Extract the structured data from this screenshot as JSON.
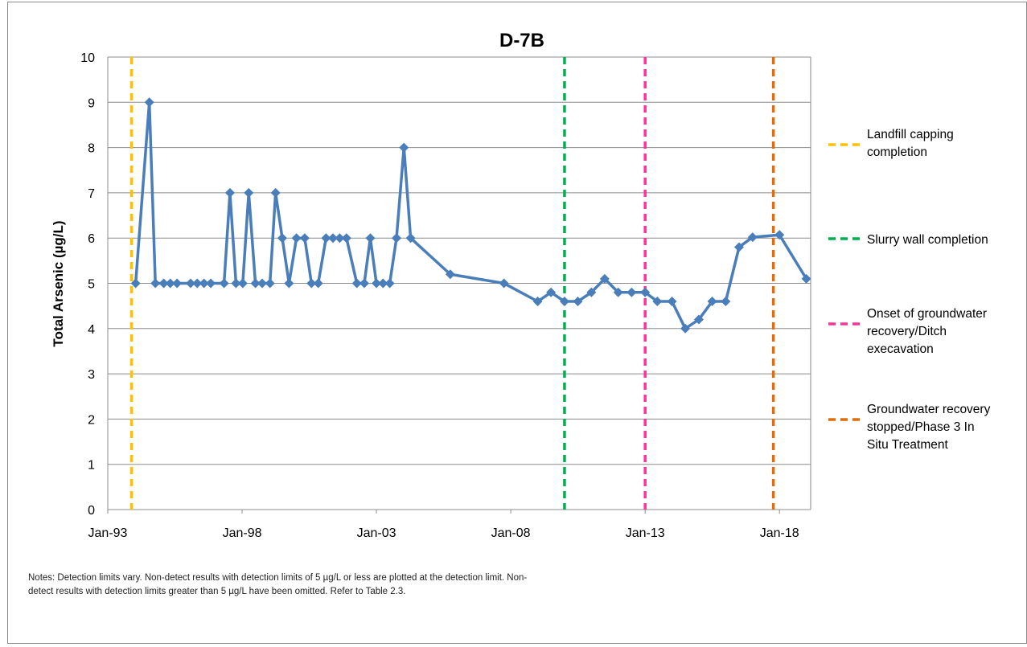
{
  "chart_data": {
    "type": "line",
    "title": "D-7B",
    "ylabel": "Total Arsenic (µg/L)",
    "xlabel": "",
    "ylim": [
      0,
      10
    ],
    "yticks": [
      "0",
      "1",
      "2",
      "3",
      "4",
      "5",
      "6",
      "7",
      "8",
      "9",
      "10"
    ],
    "xlim": [
      "1993-01-01",
      "2019-03-01"
    ],
    "xticks": [
      {
        "date": "1993-01-01",
        "label": "Jan-93"
      },
      {
        "date": "1998-01-01",
        "label": "Jan-98"
      },
      {
        "date": "2003-01-01",
        "label": "Jan-03"
      },
      {
        "date": "2008-01-01",
        "label": "Jan-08"
      },
      {
        "date": "2013-01-01",
        "label": "Jan-13"
      },
      {
        "date": "2018-01-01",
        "label": "Jan-18"
      }
    ],
    "grid": "horizontal",
    "series": [
      {
        "color": "#4a7ebb",
        "marker": "diamond",
        "points": [
          [
            "1994-01-15",
            5
          ],
          [
            "1994-07-20",
            9
          ],
          [
            "1994-10-10",
            5
          ],
          [
            "1995-02-01",
            5
          ],
          [
            "1995-05-01",
            5
          ],
          [
            "1995-08-01",
            5
          ],
          [
            "1996-02-01",
            5
          ],
          [
            "1996-05-01",
            5
          ],
          [
            "1996-08-01",
            5
          ],
          [
            "1996-11-01",
            5
          ],
          [
            "1997-05-01",
            5
          ],
          [
            "1997-07-20",
            7
          ],
          [
            "1997-10-10",
            5
          ],
          [
            "1998-01-10",
            5
          ],
          [
            "1998-04-01",
            7
          ],
          [
            "1998-07-01",
            5
          ],
          [
            "1998-10-01",
            5
          ],
          [
            "1999-01-15",
            5
          ],
          [
            "1999-04-01",
            7
          ],
          [
            "1999-07-01",
            6
          ],
          [
            "1999-10-01",
            5
          ],
          [
            "2000-01-10",
            6
          ],
          [
            "2000-05-01",
            6
          ],
          [
            "2000-08-01",
            5
          ],
          [
            "2000-11-01",
            5
          ],
          [
            "2001-02-15",
            6
          ],
          [
            "2001-05-20",
            6
          ],
          [
            "2001-08-20",
            6
          ],
          [
            "2001-11-20",
            6
          ],
          [
            "2002-04-10",
            5
          ],
          [
            "2002-07-20",
            5
          ],
          [
            "2002-10-10",
            6
          ],
          [
            "2003-01-01",
            5
          ],
          [
            "2003-04-01",
            5
          ],
          [
            "2003-07-01",
            5
          ],
          [
            "2003-10-01",
            6
          ],
          [
            "2004-01-10",
            8
          ],
          [
            "2004-04-10",
            6
          ],
          [
            "2005-10-01",
            5.2
          ],
          [
            "2007-10-01",
            5
          ],
          [
            "2009-01-01",
            4.6
          ],
          [
            "2009-07-01",
            4.8
          ],
          [
            "2010-01-01",
            4.6
          ],
          [
            "2010-07-01",
            4.6
          ],
          [
            "2011-01-01",
            4.8
          ],
          [
            "2011-07-01",
            5.1
          ],
          [
            "2012-01-01",
            4.8
          ],
          [
            "2012-07-01",
            4.8
          ],
          [
            "2013-01-01",
            4.8
          ],
          [
            "2013-06-15",
            4.6
          ],
          [
            "2014-01-01",
            4.6
          ],
          [
            "2014-07-01",
            4.0
          ],
          [
            "2015-01-01",
            4.2
          ],
          [
            "2015-07-01",
            4.6
          ],
          [
            "2016-01-01",
            4.6
          ],
          [
            "2016-07-01",
            5.8
          ],
          [
            "2017-01-01",
            6.02
          ],
          [
            "2018-01-01",
            6.07
          ],
          [
            "2019-01-01",
            5.1
          ]
        ]
      }
    ],
    "events": [
      {
        "date": "1993-11-20",
        "color": "#ffc000",
        "label": "Landfill capping completion"
      },
      {
        "date": "2010-01-01",
        "color": "#00b050",
        "label": "Slurry wall completion"
      },
      {
        "date": "2013-01-01",
        "color": "#ff3399",
        "label": "Onset of groundwater recovery/Ditch execavation"
      },
      {
        "date": "2017-10-10",
        "color": "#e36c09",
        "label": "Groundwater recovery stopped/Phase 3 In Situ Treatment"
      }
    ],
    "legend_position": "right"
  },
  "notes": {
    "line1": "Notes: Detection limits vary. Non-detect results with detection limits of 5 µg/L or less are plotted at the detection limit. Non-",
    "line2": "detect results with detection limits greater than 5 µg/L have been omitted. Refer to Table 2.3."
  }
}
